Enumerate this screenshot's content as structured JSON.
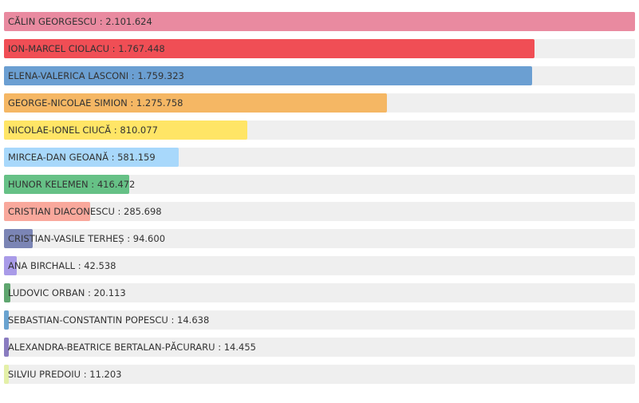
{
  "chart_data": {
    "type": "bar",
    "orientation": "horizontal",
    "title": "",
    "categories": [
      "CĂLIN GEORGESCU",
      "ION-MARCEL CIOLACU",
      "ELENA-VALERICA LASCONI",
      "GEORGE-NICOLAE SIMION",
      "NICOLAE-IONEL CIUCĂ",
      "MIRCEA-DAN GEOANĂ",
      "HUNOR KELEMEN",
      "CRISTIAN DIACONESCU",
      "CRISTIAN-VASILE TERHEȘ",
      "ANA BIRCHALL",
      "LUDOVIC ORBAN",
      "SEBASTIAN-CONSTANTIN POPESCU",
      "ALEXANDRA-BEATRICE BERTALAN-PĂCURARU",
      "SILVIU PREDOIU"
    ],
    "values": [
      2101624,
      1767448,
      1759323,
      1275758,
      810077,
      581159,
      416472,
      285698,
      94600,
      42538,
      20113,
      14638,
      14455,
      11203
    ],
    "labels": [
      "CĂLIN GEORGESCU : 2.101.624",
      "ION-MARCEL CIOLACU : 1.767.448",
      "ELENA-VALERICA LASCONI : 1.759.323",
      "GEORGE-NICOLAE SIMION : 1.275.758",
      "NICOLAE-IONEL CIUCĂ : 810.077",
      "MIRCEA-DAN GEOANĂ : 581.159",
      "HUNOR KELEMEN : 416.472",
      "CRISTIAN DIACONESCU : 285.698",
      "CRISTIAN-VASILE TERHEȘ : 94.600",
      "ANA BIRCHALL : 42.538",
      "LUDOVIC ORBAN : 20.113",
      "SEBASTIAN-CONSTANTIN POPESCU : 14.638",
      "ALEXANDRA-BEATRICE BERTALAN-PĂCURARU : 14.455",
      "SILVIU PREDOIU : 11.203"
    ],
    "colors": [
      "#e98aa0",
      "#f04e55",
      "#6b9fd2",
      "#f5b764",
      "#ffe566",
      "#a8d8fb",
      "#66c186",
      "#f9a89c",
      "#7b85b5",
      "#a99be8",
      "#5fa66f",
      "#6aa3d0",
      "#8a7cc0",
      "#e4f0a8"
    ],
    "xlim": [
      0,
      2101624
    ],
    "grid": false,
    "legend": "none"
  }
}
